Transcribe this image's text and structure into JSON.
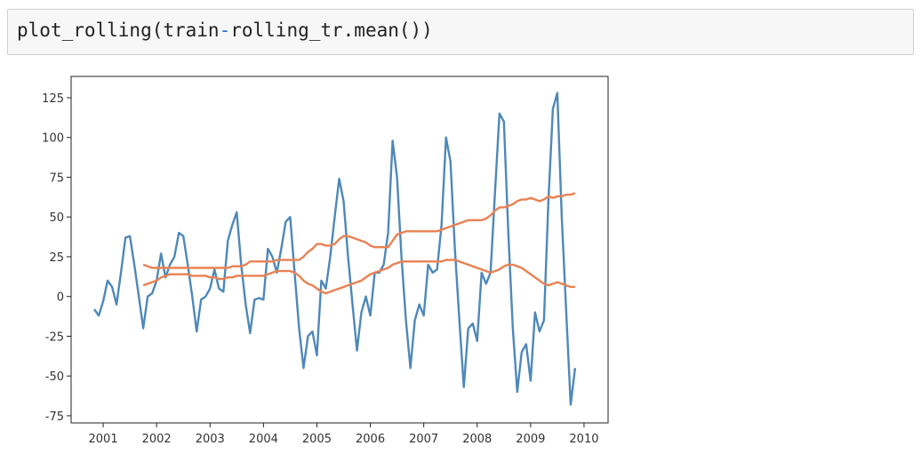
{
  "code": [
    "plot_rolling(train",
    "-",
    "rolling_tr.mean())"
  ],
  "chart_data": {
    "type": "line",
    "x": [
      2000.833,
      2000.917,
      2001.0,
      2001.083,
      2001.167,
      2001.25,
      2001.333,
      2001.417,
      2001.5,
      2001.583,
      2001.667,
      2001.75,
      2001.833,
      2001.917,
      2002.0,
      2002.083,
      2002.167,
      2002.25,
      2002.333,
      2002.417,
      2002.5,
      2002.583,
      2002.667,
      2002.75,
      2002.833,
      2002.917,
      2003.0,
      2003.083,
      2003.167,
      2003.25,
      2003.333,
      2003.417,
      2003.5,
      2003.583,
      2003.667,
      2003.75,
      2003.833,
      2003.917,
      2004.0,
      2004.083,
      2004.167,
      2004.25,
      2004.333,
      2004.417,
      2004.5,
      2004.583,
      2004.667,
      2004.75,
      2004.833,
      2004.917,
      2005.0,
      2005.083,
      2005.167,
      2005.25,
      2005.333,
      2005.417,
      2005.5,
      2005.583,
      2005.667,
      2005.75,
      2005.833,
      2005.917,
      2006.0,
      2006.083,
      2006.167,
      2006.25,
      2006.333,
      2006.417,
      2006.5,
      2006.583,
      2006.667,
      2006.75,
      2006.833,
      2006.917,
      2007.0,
      2007.083,
      2007.167,
      2007.25,
      2007.333,
      2007.417,
      2007.5,
      2007.583,
      2007.667,
      2007.75,
      2007.833,
      2007.917,
      2008.0,
      2008.083,
      2008.167,
      2008.25,
      2008.333,
      2008.417,
      2008.5,
      2008.583,
      2008.667,
      2008.75,
      2008.833,
      2008.917,
      2009.0,
      2009.083,
      2009.167,
      2009.25,
      2009.333,
      2009.417,
      2009.5,
      2009.583,
      2009.667,
      2009.75,
      2009.833
    ],
    "series": [
      {
        "color": "#4f88b9",
        "values": [
          -8,
          -12,
          -3,
          10,
          6,
          -5,
          15,
          37,
          38,
          20,
          0,
          -20,
          0,
          2,
          10,
          27,
          12,
          20,
          25,
          40,
          38,
          20,
          0,
          -22,
          -2,
          0,
          5,
          17,
          5,
          3,
          35,
          45,
          53,
          20,
          -5,
          -23,
          -2,
          -1,
          -2,
          30,
          25,
          15,
          30,
          47,
          50,
          15,
          -20,
          -45,
          -25,
          -22,
          -37,
          10,
          5,
          25,
          50,
          74,
          60,
          25,
          -5,
          -34,
          -10,
          0,
          -12,
          15,
          15,
          20,
          40,
          98,
          75,
          25,
          -15,
          -45,
          -15,
          -5,
          -12,
          20,
          15,
          17,
          45,
          100,
          85,
          30,
          -15,
          -57,
          -20,
          -17,
          -28,
          15,
          8,
          15,
          65,
          115,
          110,
          40,
          -20,
          -60,
          -35,
          -30,
          -53,
          -10,
          -22,
          -15,
          60,
          118,
          128,
          50,
          -10,
          -68,
          -45
        ]
      },
      {
        "color": "#ea8152",
        "values": [
          null,
          null,
          null,
          null,
          null,
          null,
          null,
          null,
          null,
          null,
          null,
          7,
          8,
          9,
          10,
          12,
          13,
          14,
          14,
          14,
          14,
          14,
          13,
          13,
          13,
          13,
          12,
          12,
          11,
          11,
          12,
          12,
          13,
          13,
          13,
          13,
          13,
          13,
          13,
          14,
          15,
          16,
          16,
          16,
          16,
          15,
          13,
          10,
          8,
          7,
          5,
          3,
          2,
          3,
          4,
          5,
          6,
          7,
          8,
          9,
          10,
          12,
          14,
          15,
          16,
          17,
          18,
          20,
          21,
          22,
          22,
          22,
          22,
          22,
          22,
          22,
          22,
          22,
          22,
          23,
          23,
          23,
          22,
          21,
          20,
          19,
          18,
          17,
          16,
          15,
          16,
          17,
          19,
          20,
          20,
          19,
          18,
          16,
          14,
          12,
          10,
          8,
          7,
          8,
          9,
          8,
          7,
          6,
          6
        ]
      },
      {
        "color": "#ea8152",
        "values": [
          null,
          null,
          null,
          null,
          null,
          null,
          null,
          null,
          null,
          null,
          null,
          20,
          19,
          18,
          18,
          18,
          18,
          18,
          18,
          18,
          18,
          18,
          18,
          18,
          18,
          18,
          18,
          18,
          18,
          18,
          18,
          19,
          19,
          19,
          20,
          22,
          22,
          22,
          22,
          22,
          22,
          23,
          23,
          23,
          23,
          23,
          23,
          25,
          28,
          30,
          33,
          33,
          32,
          32,
          33,
          36,
          38,
          38,
          37,
          36,
          35,
          34,
          32,
          31,
          31,
          31,
          31,
          35,
          39,
          40,
          41,
          41,
          41,
          41,
          41,
          41,
          41,
          41,
          42,
          43,
          44,
          45,
          46,
          47,
          48,
          48,
          48,
          48,
          49,
          51,
          54,
          56,
          56,
          57,
          58,
          60,
          61,
          61,
          62,
          61,
          60,
          61,
          63,
          62,
          63,
          63,
          64,
          64,
          65
        ]
      }
    ],
    "xlim": [
      2000.4,
      2010.45
    ],
    "xticks": [
      2001,
      2002,
      2003,
      2004,
      2005,
      2006,
      2007,
      2008,
      2009,
      2010
    ],
    "ylim": [
      -79.5,
      138.4
    ],
    "yticks": [
      -75,
      -50,
      -25,
      0,
      25,
      50,
      75,
      100,
      125
    ]
  }
}
